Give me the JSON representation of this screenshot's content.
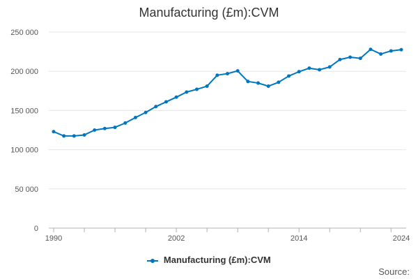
{
  "chart_data": {
    "type": "line",
    "title": "Manufacturing (£m):CVM",
    "xlabel": "",
    "ylabel": "",
    "xlim": [
      1990,
      2024
    ],
    "ylim": [
      0,
      250000
    ],
    "grid": true,
    "legend_position": "bottom",
    "y_ticks": [
      0,
      50000,
      100000,
      150000,
      200000,
      250000
    ],
    "y_tick_labels": [
      "0",
      "50 000",
      "100 000",
      "150 000",
      "200 000",
      "250 000"
    ],
    "x_ticks": [
      1990,
      2002,
      2014,
      2024
    ],
    "x_tick_labels": [
      "1990",
      "2002",
      "2014",
      "2024"
    ],
    "x_minor_ticks": [
      1990,
      1993,
      1996,
      1999,
      2002,
      2005,
      2008,
      2011,
      2014,
      2017,
      2020,
      2023
    ],
    "series": [
      {
        "name": "Manufacturing (£m):CVM",
        "color": "#0076c0",
        "x": [
          1990,
          1991,
          1992,
          1993,
          1994,
          1995,
          1996,
          1997,
          1998,
          1999,
          2000,
          2001,
          2002,
          2003,
          2004,
          2005,
          2006,
          2007,
          2008,
          2009,
          2010,
          2011,
          2012,
          2013,
          2014,
          2015,
          2016,
          2017,
          2018,
          2019,
          2020,
          2021,
          2022,
          2023,
          2024
        ],
        "values": [
          123000,
          117500,
          117500,
          118800,
          125000,
          127000,
          128500,
          134000,
          141000,
          147500,
          155000,
          161000,
          167000,
          173500,
          177000,
          181000,
          195000,
          197000,
          200500,
          187000,
          185000,
          181000,
          186000,
          194000,
          199500,
          204000,
          202000,
          205500,
          215000,
          218000,
          216500,
          228000,
          222000,
          226000,
          227500
        ]
      }
    ]
  },
  "legend": {
    "label": "Manufacturing (£m):CVM"
  },
  "source": {
    "label": "Source:"
  }
}
